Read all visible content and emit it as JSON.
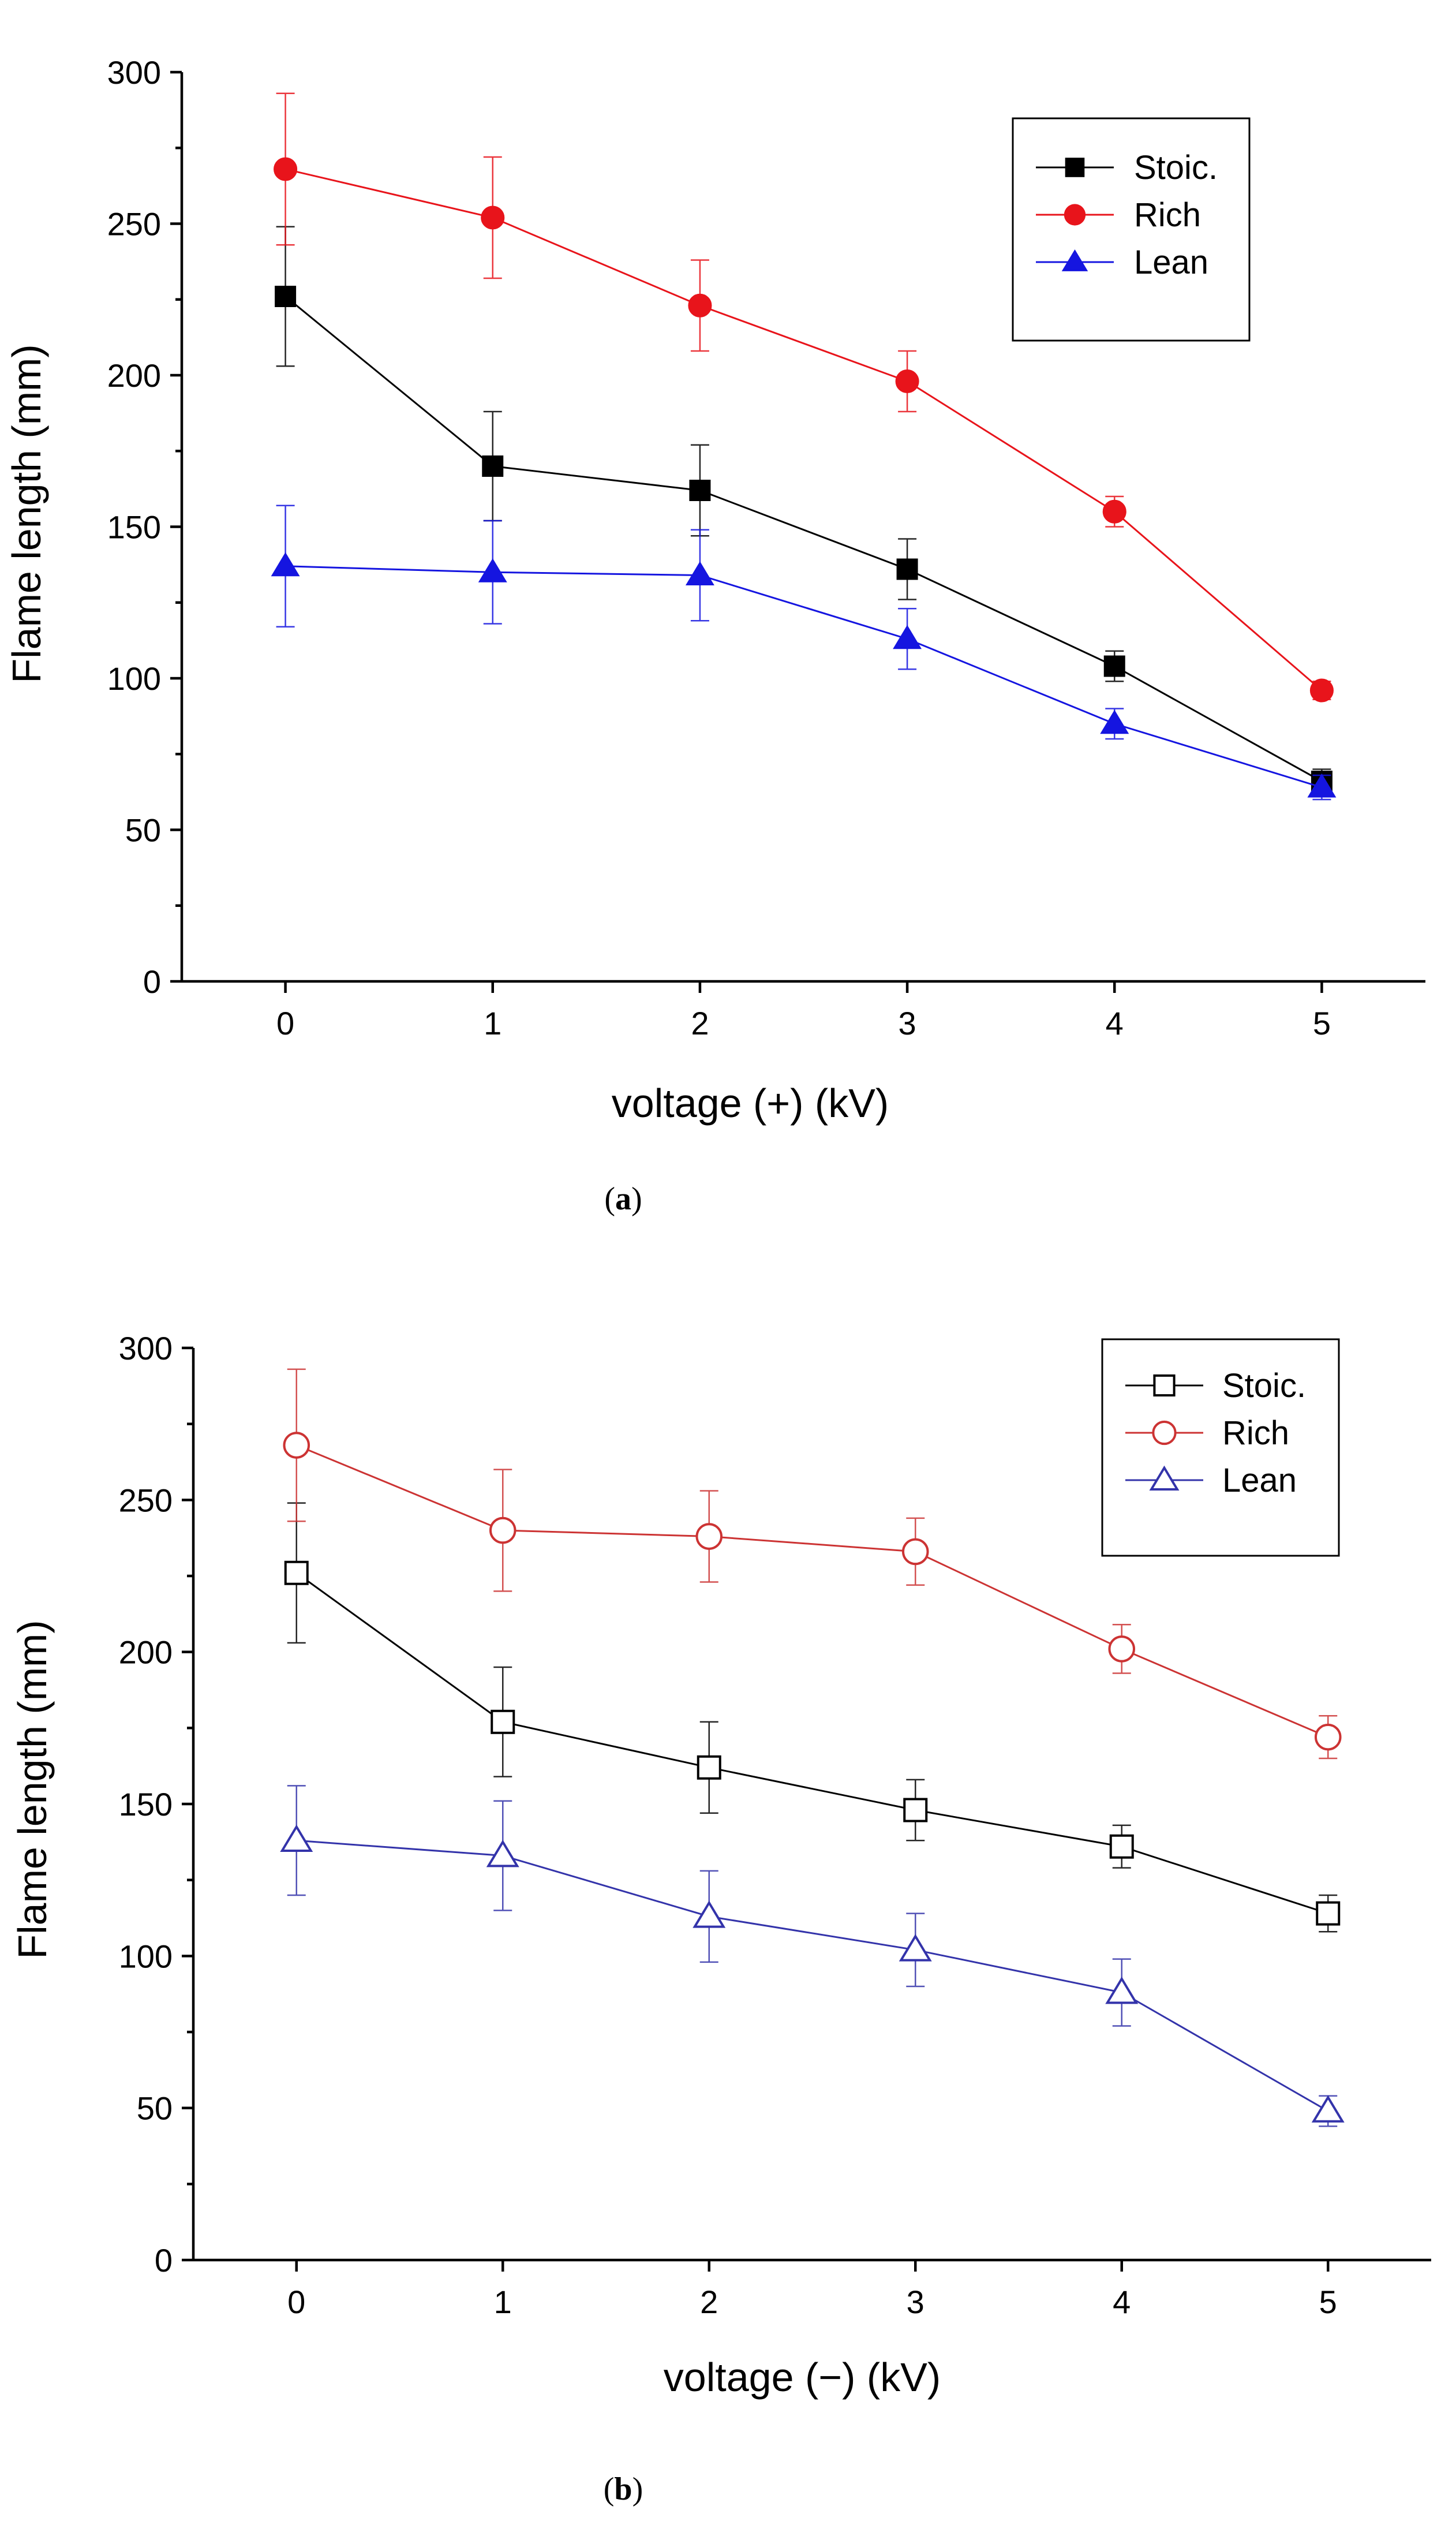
{
  "figure": {
    "panels": [
      {
        "id": "a",
        "caption_open": "(",
        "caption_letter": "a",
        "caption_close": ")"
      },
      {
        "id": "b",
        "caption_open": "(",
        "caption_letter": "b",
        "caption_close": ")"
      }
    ]
  },
  "chart_data": [
    {
      "type": "line",
      "title": "",
      "xlabel": "voltage (+) (kV)",
      "ylabel": "Flame length (mm)",
      "x": [
        0,
        1,
        2,
        3,
        4,
        5
      ],
      "xlim": [
        -0.5,
        5.5
      ],
      "ylim": [
        0,
        300
      ],
      "x_ticks": [
        "0",
        "1",
        "2",
        "3",
        "4",
        "5"
      ],
      "y_ticks": [
        "0",
        "50",
        "100",
        "150",
        "200",
        "250",
        "300"
      ],
      "legend_position": "top-right",
      "marker_fill": "filled",
      "series": [
        {
          "name": "Stoic.",
          "color": "#000000",
          "marker": "square",
          "values": [
            226,
            170,
            162,
            136,
            104,
            66
          ],
          "errors": [
            23,
            18,
            15,
            10,
            5,
            4
          ]
        },
        {
          "name": "Rich",
          "color": "#e8141b",
          "marker": "circle",
          "values": [
            268,
            252,
            223,
            198,
            155,
            96
          ],
          "errors": [
            25,
            20,
            15,
            10,
            5,
            3
          ]
        },
        {
          "name": "Lean",
          "color": "#1515e0",
          "marker": "triangle",
          "values": [
            137,
            135,
            134,
            113,
            85,
            64
          ],
          "errors": [
            20,
            17,
            15,
            10,
            5,
            4
          ]
        }
      ]
    },
    {
      "type": "line",
      "title": "",
      "xlabel": "voltage (−) (kV)",
      "ylabel": "Flame length (mm)",
      "x": [
        0,
        1,
        2,
        3,
        4,
        5
      ],
      "xlim": [
        -0.5,
        5.5
      ],
      "ylim": [
        0,
        300
      ],
      "x_ticks": [
        "0",
        "1",
        "2",
        "3",
        "4",
        "5"
      ],
      "y_ticks": [
        "0",
        "50",
        "100",
        "150",
        "200",
        "250",
        "300"
      ],
      "legend_position": "top-right",
      "marker_fill": "open",
      "series": [
        {
          "name": "Stoic.",
          "color": "#000000",
          "marker": "square",
          "values": [
            226,
            177,
            162,
            148,
            136,
            114
          ],
          "errors": [
            23,
            18,
            15,
            10,
            7,
            6
          ]
        },
        {
          "name": "Rich",
          "color": "#cc3333",
          "marker": "circle",
          "values": [
            268,
            240,
            238,
            233,
            201,
            172
          ],
          "errors": [
            25,
            20,
            15,
            11,
            8,
            7
          ]
        },
        {
          "name": "Lean",
          "color": "#3333aa",
          "marker": "triangle",
          "values": [
            138,
            133,
            113,
            102,
            88,
            49
          ],
          "errors": [
            18,
            18,
            15,
            12,
            11,
            5
          ]
        }
      ]
    }
  ]
}
